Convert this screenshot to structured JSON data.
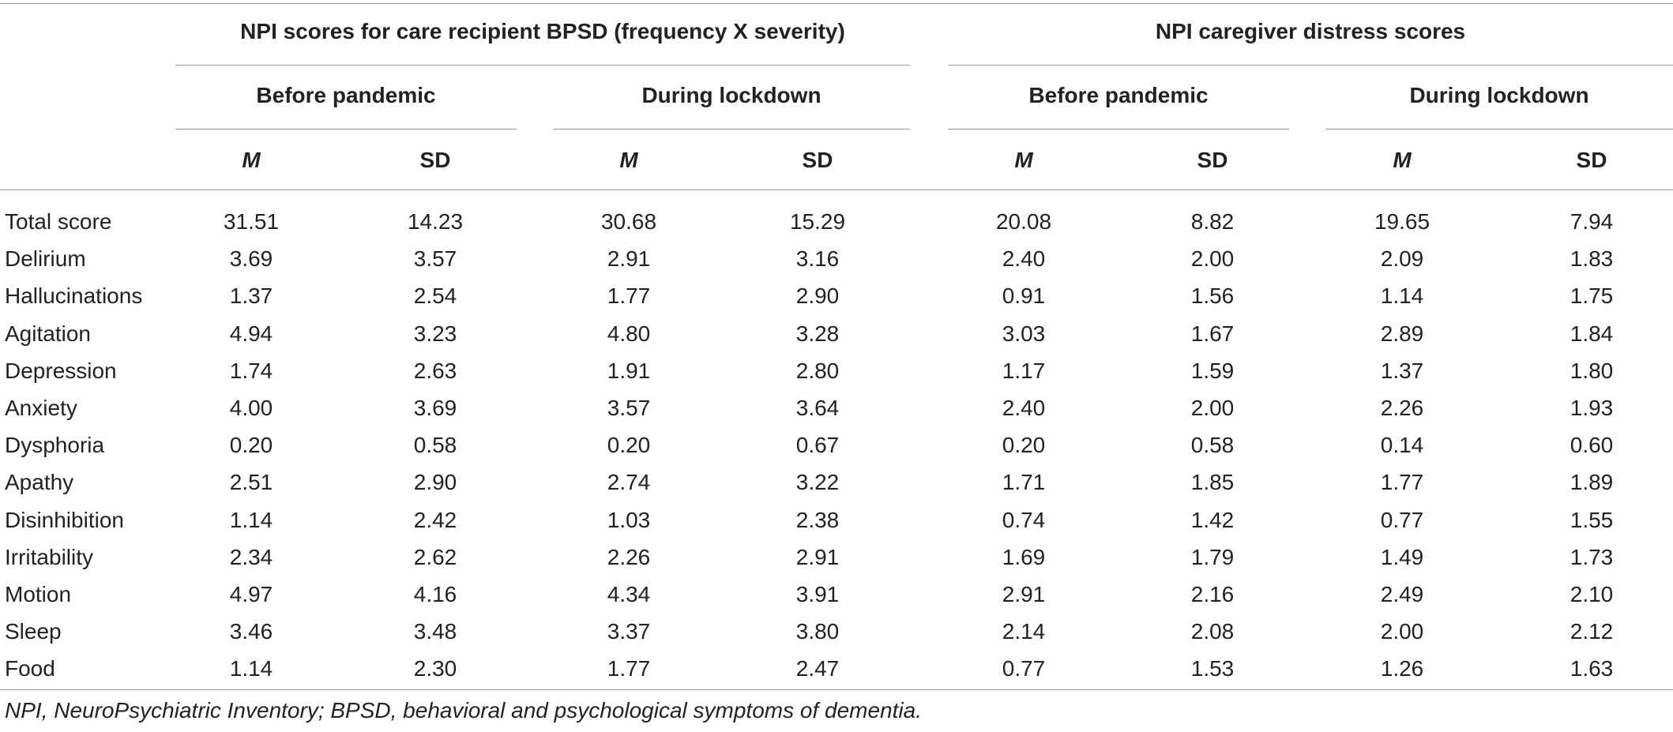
{
  "table": {
    "group_headers": [
      "NPI scores for care recipient BPSD (frequency X severity)",
      "NPI caregiver distress scores"
    ],
    "period_headers": [
      "Before pandemic",
      "During lockdown",
      "Before pandemic",
      "During lockdown"
    ],
    "stat_headers": [
      "M",
      "SD",
      "M",
      "SD",
      "M",
      "SD",
      "M",
      "SD"
    ],
    "rows": [
      {
        "label": "Total score",
        "values": [
          "31.51",
          "14.23",
          "30.68",
          "15.29",
          "20.08",
          "8.82",
          "19.65",
          "7.94"
        ]
      },
      {
        "label": "Delirium",
        "values": [
          "3.69",
          "3.57",
          "2.91",
          "3.16",
          "2.40",
          "2.00",
          "2.09",
          "1.83"
        ]
      },
      {
        "label": "Hallucinations",
        "values": [
          "1.37",
          "2.54",
          "1.77",
          "2.90",
          "0.91",
          "1.56",
          "1.14",
          "1.75"
        ]
      },
      {
        "label": "Agitation",
        "values": [
          "4.94",
          "3.23",
          "4.80",
          "3.28",
          "3.03",
          "1.67",
          "2.89",
          "1.84"
        ]
      },
      {
        "label": "Depression",
        "values": [
          "1.74",
          "2.63",
          "1.91",
          "2.80",
          "1.17",
          "1.59",
          "1.37",
          "1.80"
        ]
      },
      {
        "label": "Anxiety",
        "values": [
          "4.00",
          "3.69",
          "3.57",
          "3.64",
          "2.40",
          "2.00",
          "2.26",
          "1.93"
        ]
      },
      {
        "label": "Dysphoria",
        "values": [
          "0.20",
          "0.58",
          "0.20",
          "0.67",
          "0.20",
          "0.58",
          "0.14",
          "0.60"
        ]
      },
      {
        "label": "Apathy",
        "values": [
          "2.51",
          "2.90",
          "2.74",
          "3.22",
          "1.71",
          "1.85",
          "1.77",
          "1.89"
        ]
      },
      {
        "label": "Disinhibition",
        "values": [
          "1.14",
          "2.42",
          "1.03",
          "2.38",
          "0.74",
          "1.42",
          "0.77",
          "1.55"
        ]
      },
      {
        "label": "Irritability",
        "values": [
          "2.34",
          "2.62",
          "2.26",
          "2.91",
          "1.69",
          "1.79",
          "1.49",
          "1.73"
        ]
      },
      {
        "label": "Motion",
        "values": [
          "4.97",
          "4.16",
          "4.34",
          "3.91",
          "2.91",
          "2.16",
          "2.49",
          "2.10"
        ]
      },
      {
        "label": "Sleep",
        "values": [
          "3.46",
          "3.48",
          "3.37",
          "3.80",
          "2.14",
          "2.08",
          "2.00",
          "2.12"
        ]
      },
      {
        "label": "Food",
        "values": [
          "1.14",
          "2.30",
          "1.77",
          "2.47",
          "0.77",
          "1.53",
          "1.26",
          "1.63"
        ]
      }
    ],
    "footnote": "NPI, NeuroPsychiatric Inventory; BPSD, behavioral and psychological symptoms of dementia."
  },
  "colors": {
    "text": "#222222",
    "rule": "#9a9a9a",
    "background": "#ffffff"
  }
}
